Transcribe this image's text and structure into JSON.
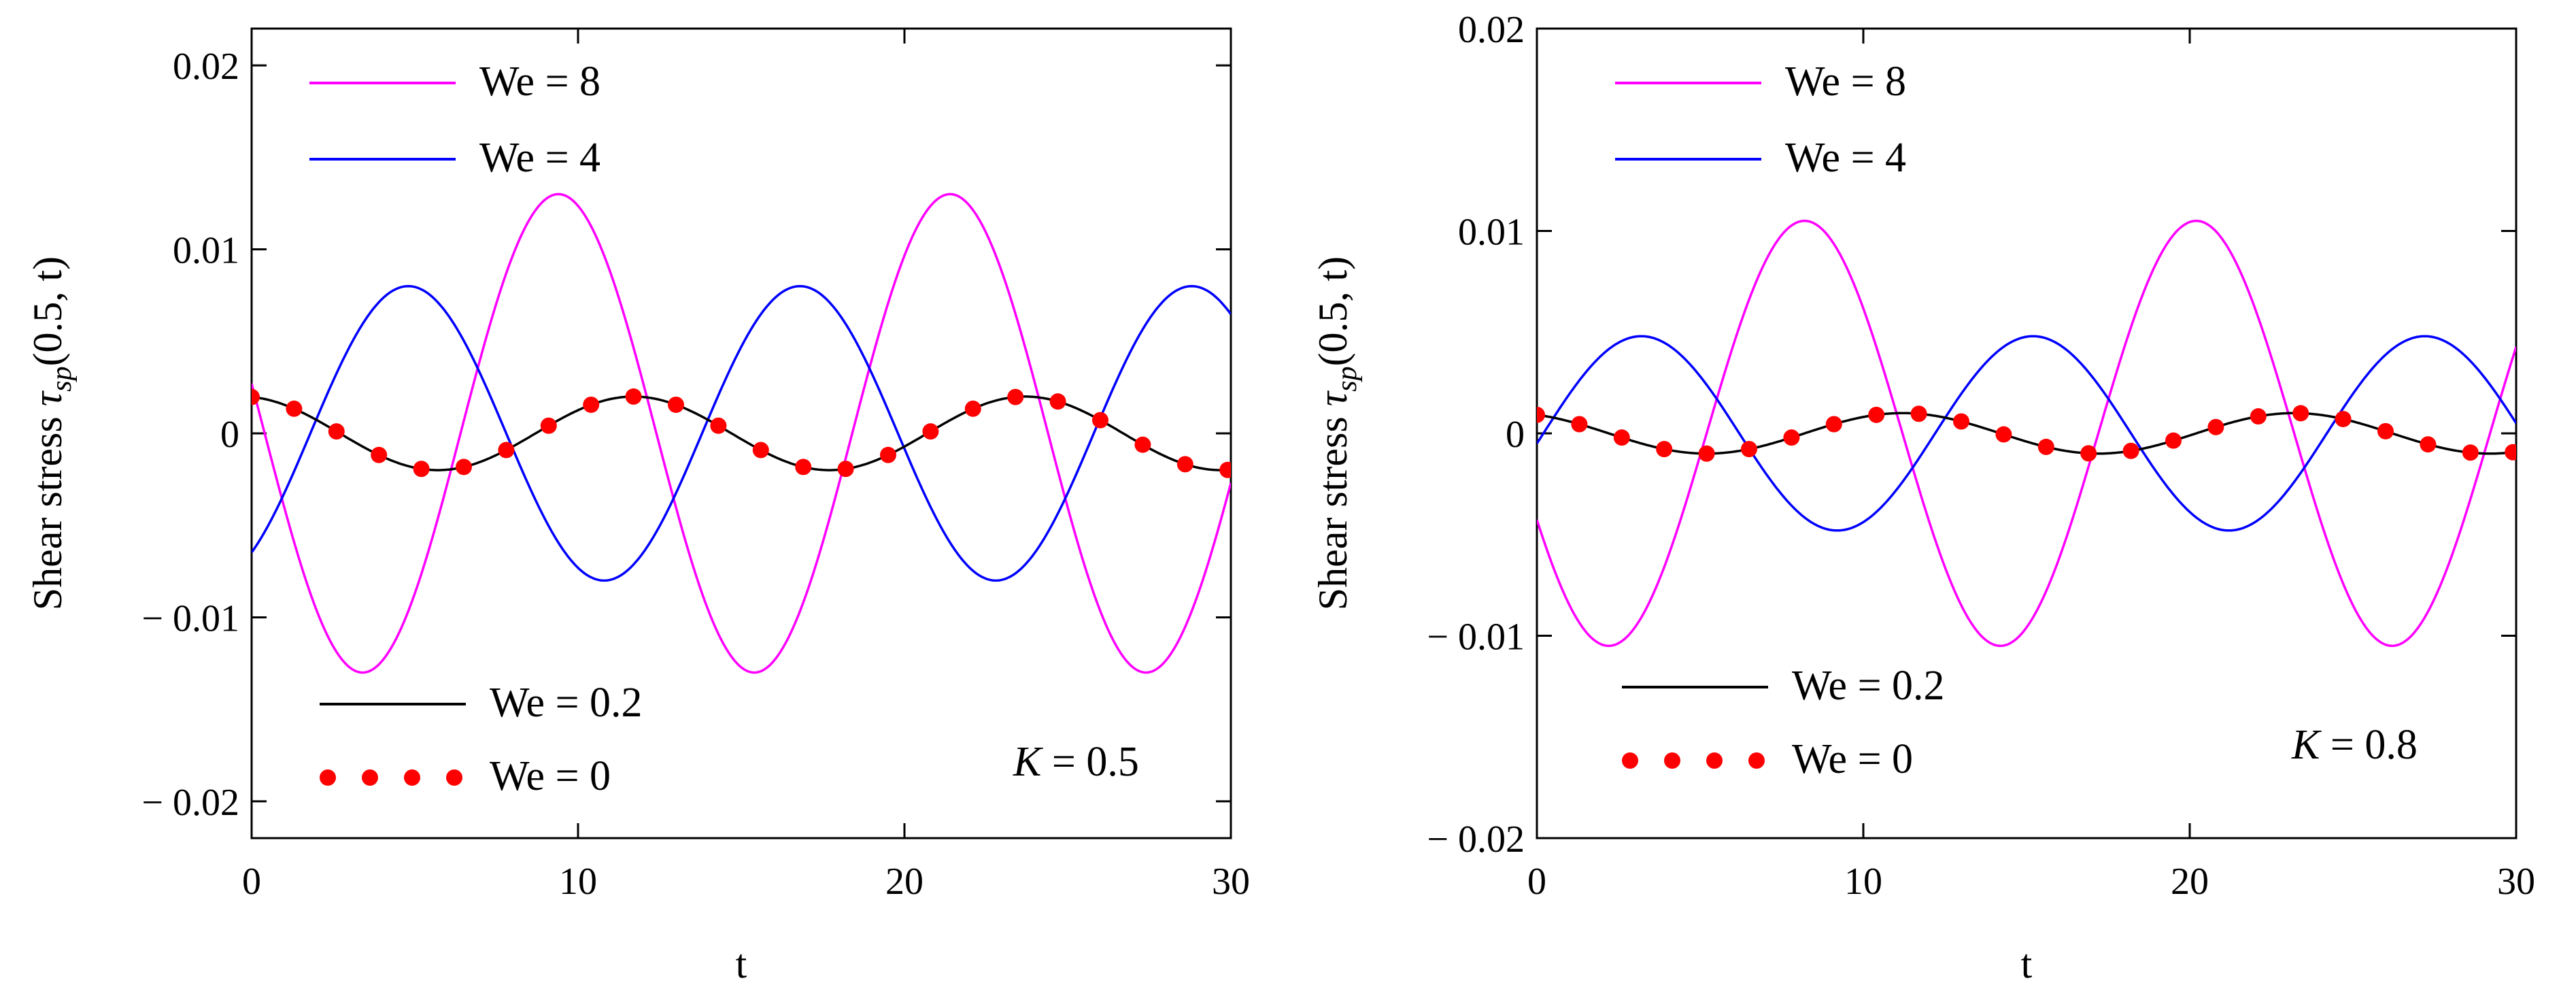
{
  "chart_data": [
    {
      "type": "line",
      "xlabel": "t",
      "ylabel_prefix": "Shear stress ",
      "ylabel_symbol": "τ",
      "ylabel_sub": "sp",
      "ylabel_args": "(0.5, t)",
      "xlim": [
        0,
        30
      ],
      "ylim": [
        -0.022,
        0.022
      ],
      "xticks": [
        0,
        10,
        20,
        30
      ],
      "xtick_labels": [
        "0",
        "10",
        "20",
        "30"
      ],
      "yticks": [
        0.02,
        0.01,
        0,
        -0.01,
        -0.02
      ],
      "ytick_labels": [
        "0.02",
        "0.01",
        "0",
        "− 0.01",
        "− 0.02"
      ],
      "param_symbol": "K",
      "param_value": " = 0.5",
      "series": [
        {
          "name": "We = 8",
          "color": "#ff00ff",
          "style": "line",
          "amplitude": 0.013,
          "period": 12,
          "phase_peak_t": 9.4
        },
        {
          "name": "We = 4",
          "color": "#0000ff",
          "style": "line",
          "amplitude": 0.008,
          "period": 12,
          "phase_peak_t": 4.8
        },
        {
          "name": "We = 0.2",
          "color": "#000000",
          "style": "line",
          "amplitude": 0.002,
          "period": 12,
          "phase_peak_t": -0.3
        },
        {
          "name": "We = 0",
          "color": "#ff0000",
          "style": "dots",
          "amplitude": 0.002,
          "period": 12,
          "phase_peak_t": -0.3,
          "dot_spacing": 1.3
        }
      ]
    },
    {
      "type": "line",
      "xlabel": "t",
      "ylabel_prefix": "Shear stress ",
      "ylabel_symbol": "τ",
      "ylabel_sub": "sp",
      "ylabel_args": "(0.5, t)",
      "xlim": [
        0,
        30
      ],
      "ylim": [
        -0.02,
        0.02
      ],
      "xticks": [
        0,
        10,
        20,
        30
      ],
      "xtick_labels": [
        "0",
        "10",
        "20",
        "30"
      ],
      "yticks": [
        0.02,
        0.01,
        0,
        -0.01,
        -0.02
      ],
      "ytick_labels": [
        "0.02",
        "0.01",
        "0",
        "− 0.01",
        "− 0.02"
      ],
      "param_symbol": "K",
      "param_value": " = 0.8",
      "series": [
        {
          "name": "We = 8",
          "color": "#ff00ff",
          "style": "line",
          "amplitude": 0.0105,
          "period": 12,
          "phase_peak_t": 8.2
        },
        {
          "name": "We = 4",
          "color": "#0000ff",
          "style": "line",
          "amplitude": 0.0048,
          "period": 12,
          "phase_peak_t": 3.2
        },
        {
          "name": "We = 0.2",
          "color": "#000000",
          "style": "line",
          "amplitude": 0.001,
          "period": 12,
          "phase_peak_t": 11.2
        },
        {
          "name": "We = 0",
          "color": "#ff0000",
          "style": "dots",
          "amplitude": 0.001,
          "period": 12,
          "phase_peak_t": 11.2,
          "dot_spacing": 1.3
        }
      ]
    }
  ]
}
